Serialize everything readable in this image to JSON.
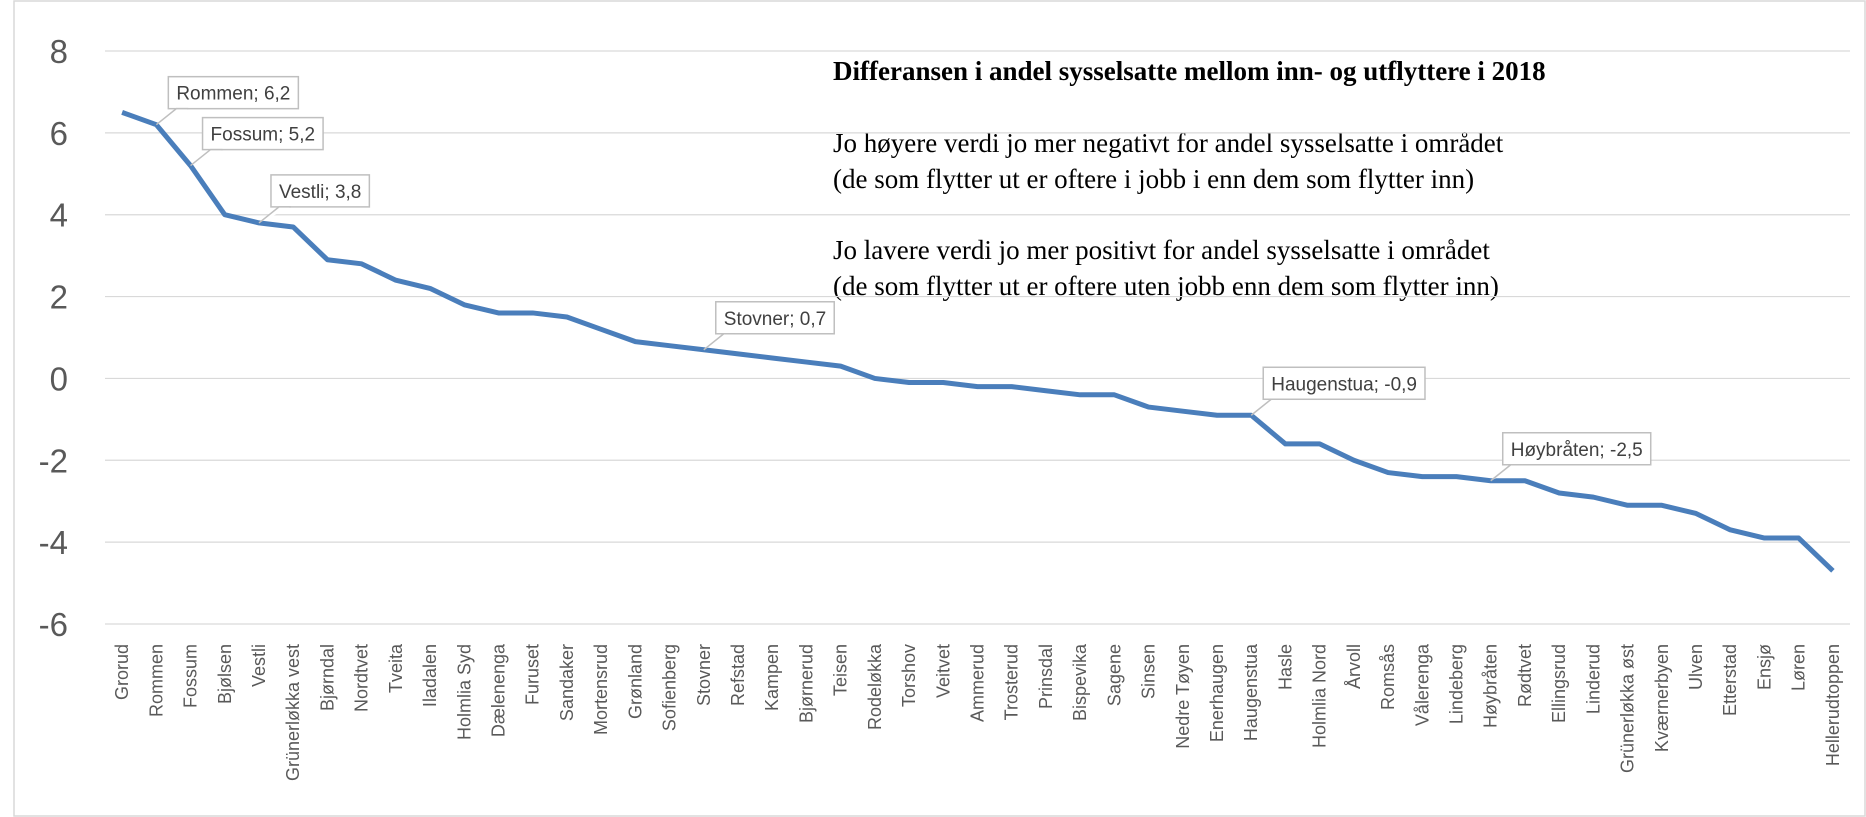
{
  "chart_data": {
    "type": "line",
    "title": "Differansen i andel sysselsatte mellom inn- og utflyttere i 2018",
    "annotations": [
      "Jo høyere verdi jo mer negativt for andel sysselsatte i området",
      "(de som flytter ut er oftere i jobb i enn dem som flytter inn)",
      "Jo lavere verdi jo mer positivt for andel sysselsatte i området",
      "(de som flytter ut er oftere uten jobb enn dem som flytter inn)"
    ],
    "categories": [
      "Grorud",
      "Rommen",
      "Fossum",
      "Bjølsen",
      "Vestli",
      "Grünerløkka vest",
      "Bjørndal",
      "Nordtvet",
      "Tveita",
      "Iladalen",
      "Holmlia Syd",
      "Dælenenga",
      "Furuset",
      "Sandaker",
      "Mortensrud",
      "Grønland",
      "Sofienberg",
      "Stovner",
      "Refstad",
      "Kampen",
      "Bjørnerud",
      "Teisen",
      "Rodeløkka",
      "Torshov",
      "Veitvet",
      "Ammerud",
      "Trosterud",
      "Prinsdal",
      "Bispevika",
      "Sagene",
      "Sinsen",
      "Nedre Tøyen",
      "Enerhaugen",
      "Haugenstua",
      "Hasle",
      "Holmlia Nord",
      "Årvoll",
      "Romsås",
      "Vålerenga",
      "Lindeberg",
      "Høybråten",
      "Rødtvet",
      "Ellingsrud",
      "Linderud",
      "Grünerløkka øst",
      "Kværnerbyen",
      "Ulven",
      "Etterstad",
      "Ensjø",
      "Løren",
      "Hellerudtoppen"
    ],
    "series": [
      {
        "color": "#4a7ebb",
        "values": [
          6.5,
          6.2,
          5.2,
          4.0,
          3.8,
          3.7,
          2.9,
          2.8,
          2.4,
          2.2,
          1.8,
          1.6,
          1.6,
          1.5,
          1.2,
          0.9,
          0.8,
          0.7,
          0.6,
          0.5,
          0.4,
          0.3,
          0.0,
          -0.1,
          -0.1,
          -0.2,
          -0.2,
          -0.3,
          -0.4,
          -0.4,
          -0.7,
          -0.8,
          -0.9,
          -0.9,
          -1.6,
          -1.6,
          -2.0,
          -2.3,
          -2.4,
          -2.4,
          -2.5,
          -2.5,
          -2.8,
          -2.9,
          -3.1,
          -3.1,
          -3.3,
          -3.7,
          -3.9,
          -3.9,
          -4.7
        ],
        "value_labels": [
          null,
          "Rommen; 6,2",
          "Fossum; 5,2",
          null,
          "Vestli; 3,8",
          null,
          null,
          null,
          null,
          null,
          null,
          null,
          null,
          null,
          null,
          null,
          null,
          "Stovner; 0,7",
          null,
          null,
          null,
          null,
          null,
          null,
          null,
          null,
          null,
          null,
          null,
          null,
          null,
          null,
          null,
          "Haugenstua; -0,9",
          null,
          null,
          null,
          null,
          null,
          null,
          "Høybråten; -2,5",
          null,
          null,
          null,
          null,
          null,
          null,
          null,
          null,
          null,
          null
        ]
      }
    ],
    "ylim": [
      -6,
      8
    ],
    "yticks": [
      -6,
      -4,
      -2,
      0,
      2,
      4,
      6,
      8
    ],
    "grid": true
  }
}
